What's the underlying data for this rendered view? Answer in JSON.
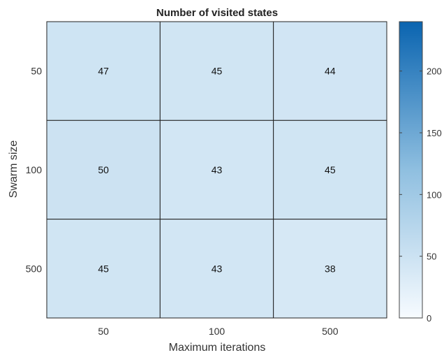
{
  "chart_data": {
    "type": "heatmap",
    "title": "Number of visited states",
    "xlabel": "Maximum iterations",
    "ylabel": "Swarm size",
    "x_categories": [
      "50",
      "100",
      "500"
    ],
    "y_categories": [
      "50",
      "100",
      "500"
    ],
    "values": [
      [
        47,
        45,
        44
      ],
      [
        50,
        43,
        45
      ],
      [
        45,
        43,
        38
      ]
    ],
    "colorbar": {
      "range": [
        0,
        240
      ],
      "ticks": [
        0,
        50,
        100,
        150,
        200
      ],
      "color_low": "#f7fbff",
      "color_high": "#0a64b0"
    },
    "grid_color": "#222222"
  }
}
